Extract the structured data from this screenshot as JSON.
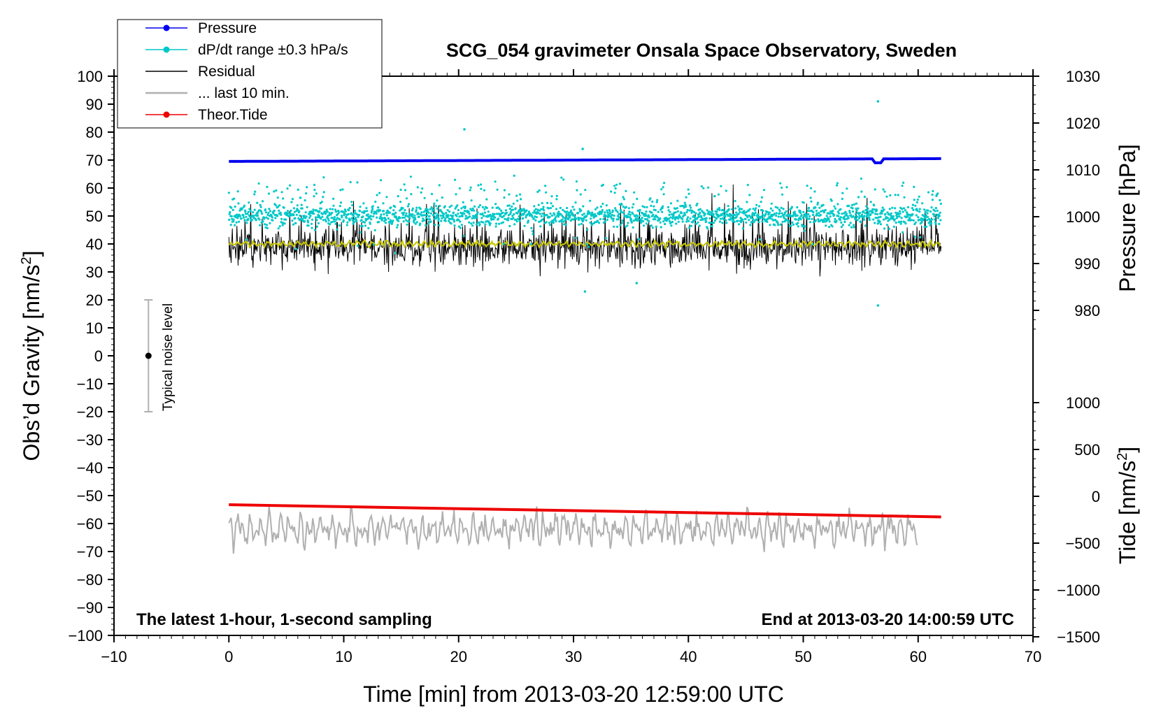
{
  "chart_data": {
    "type": "scatter",
    "title": "SCG_054 gravimeter Onsala Space Observatory, Sweden",
    "xlabel": "Time [min] from 2013-03-20 12:59:00 UTC",
    "ylabel_left": "Obs’d Gravity [nm/s",
    "ylabel_left_sup": "2",
    "ylabel_left_end": "]",
    "ylabel_right_pressure": "Pressure [hPa]",
    "ylabel_right_tide": "Tide [nm/s",
    "ylabel_right_tide_sup": "2",
    "ylabel_right_tide_end": "]",
    "xlim": [
      -10,
      70
    ],
    "ylim_left": [
      -100,
      100
    ],
    "pressure_ticks": [
      980,
      990,
      1000,
      1010,
      1020,
      1030
    ],
    "tide_ticks": [
      -1500,
      -1000,
      -500,
      0,
      500,
      1000
    ],
    "x_ticks": [
      -10,
      0,
      10,
      20,
      30,
      40,
      50,
      60,
      70
    ],
    "y_ticks": [
      -100,
      -90,
      -80,
      -70,
      -60,
      -50,
      -40,
      -30,
      -20,
      -10,
      0,
      10,
      20,
      30,
      40,
      50,
      60,
      70,
      80,
      90,
      100
    ],
    "annotation_left": "The latest 1-hour, 1-second sampling",
    "annotation_right": "End at 2013-03-20 14:00:59 UTC",
    "noise_label": "Typical noise level",
    "noise_range": [
      -20,
      20
    ],
    "legend": [
      {
        "label": "Pressure",
        "color": "#0000ee",
        "marker": true
      },
      {
        "label": "dP/dt range ±0.3 hPa/s",
        "color": "#00c8c8",
        "marker": true
      },
      {
        "label": "Residual",
        "color": "#000000",
        "marker": false
      },
      {
        "label": "... last 10 min.",
        "color": "#b0b0b0",
        "marker": false
      },
      {
        "label": "Theor.Tide",
        "color": "#ee0000",
        "marker": true
      }
    ],
    "series": [
      {
        "name": "Pressure",
        "axis": "pressure",
        "color": "#0000ee",
        "x_range": [
          0,
          62
        ],
        "values_hPa": [
          1011.8,
          1012.4
        ],
        "dip": {
          "x": 56.5,
          "value_hPa": 1011.5
        }
      },
      {
        "name": "dP/dt range ±0.3 hPa/s",
        "axis": "left",
        "color": "#00c8c8",
        "x_range": [
          0,
          62
        ],
        "center": 50,
        "spread": 5,
        "outliers": [
          [
            20.5,
            81
          ],
          [
            30.8,
            74
          ],
          [
            56.5,
            91
          ],
          [
            56.5,
            18
          ],
          [
            31,
            23
          ],
          [
            35.5,
            26
          ]
        ]
      },
      {
        "name": "Residual",
        "axis": "left",
        "color": "#000000",
        "x_range": [
          0,
          62
        ],
        "center": 38.5,
        "spread": 6
      },
      {
        "name": "Residual smoothed",
        "axis": "left",
        "color": "#c8c800",
        "x_range": [
          0,
          62
        ],
        "center": 40
      },
      {
        "name": "... last 10 min.",
        "axis": "left",
        "color": "#b0b0b0",
        "x_range": [
          0,
          60
        ],
        "center": -62,
        "spread": 5
      },
      {
        "name": "Theor.Tide",
        "axis": "tide",
        "color": "#ee0000",
        "x": [
          0,
          62
        ],
        "values": [
          -90,
          -220
        ]
      }
    ]
  }
}
